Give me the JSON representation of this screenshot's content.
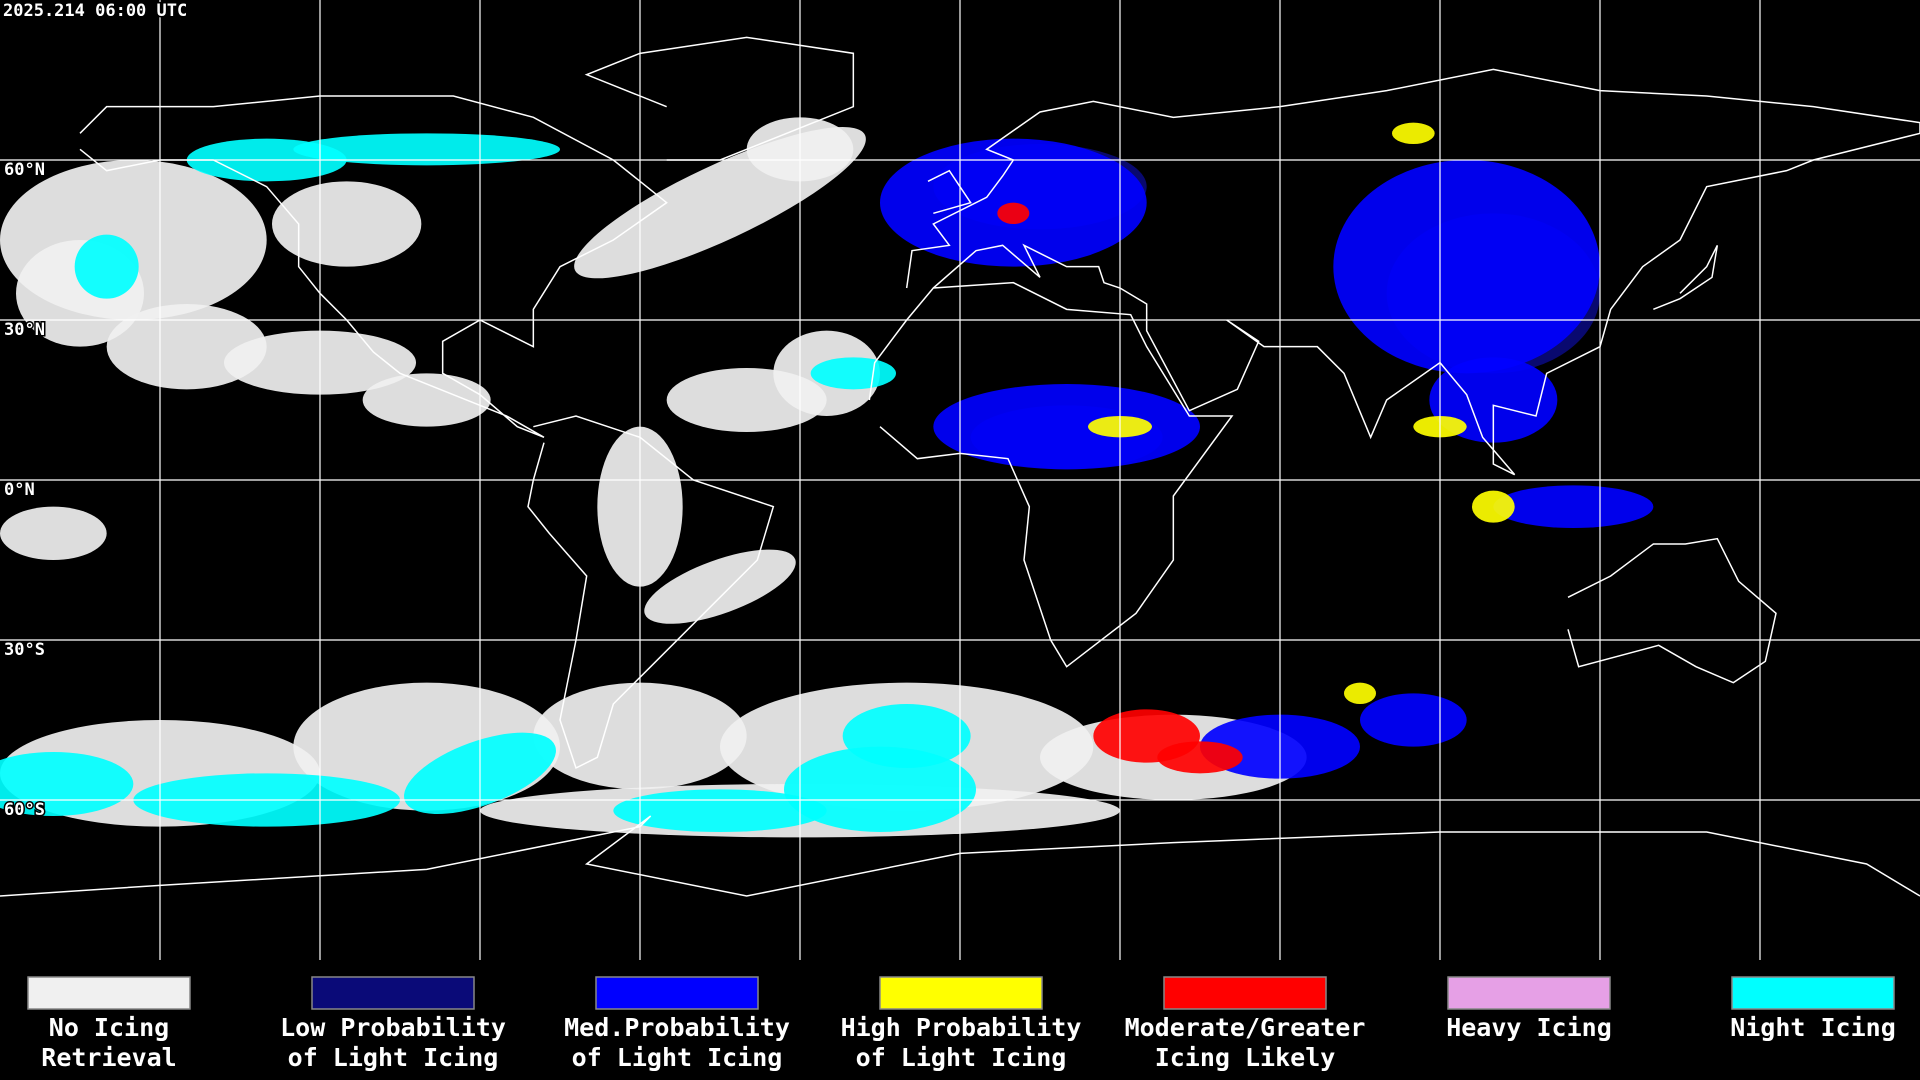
{
  "header": {
    "timestamp": "2025.214 06:00 UTC"
  },
  "map": {
    "latitude_labels": [
      "60°N",
      "30°N",
      "0°N",
      "30°S",
      "60°S"
    ]
  },
  "legend": [
    {
      "color": "#f0f0f0",
      "lines": [
        "No Icing",
        "Retrieval"
      ]
    },
    {
      "color": "#0a0a78",
      "lines": [
        "Low Probability",
        "of Light Icing"
      ]
    },
    {
      "color": "#0000ff",
      "lines": [
        "Med.Probability",
        "of Light Icing"
      ]
    },
    {
      "color": "#ffff00",
      "lines": [
        "High Probability",
        "of Light Icing"
      ]
    },
    {
      "color": "#ff0000",
      "lines": [
        "Moderate/Greater",
        "Icing Likely"
      ]
    },
    {
      "color": "#e6a0e6",
      "lines": [
        "Heavy Icing"
      ]
    },
    {
      "color": "#00ffff",
      "lines": [
        "Night Icing"
      ]
    }
  ]
}
